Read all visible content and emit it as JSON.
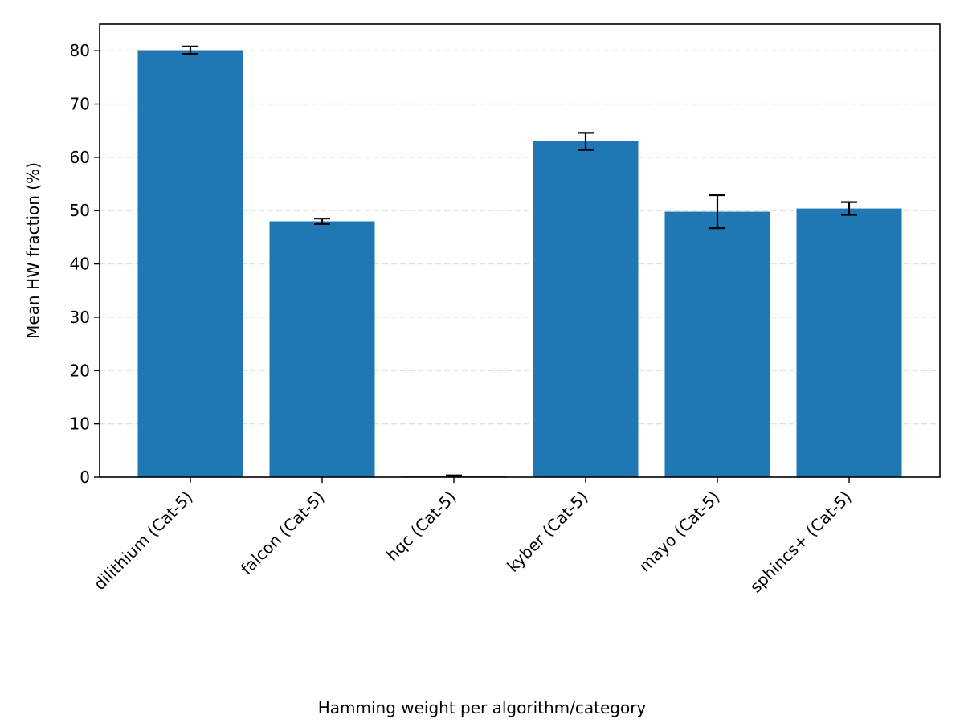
{
  "chart_data": {
    "type": "bar",
    "title": "",
    "xlabel": "Hamming weight per algorithm/category",
    "ylabel": "Mean HW fraction (%)",
    "categories": [
      "dilithium (Cat-5)",
      "falcon (Cat-5)",
      "hqc (Cat-5)",
      "kyber (Cat-5)",
      "mayo (Cat-5)",
      "sphincs+ (Cat-5)"
    ],
    "values": [
      80.1,
      48.0,
      0.3,
      63.0,
      49.8,
      50.4
    ],
    "errors": [
      0.7,
      0.5,
      0.05,
      1.6,
      3.1,
      1.2
    ],
    "ylim": [
      0,
      85
    ],
    "yticks": [
      0,
      10,
      20,
      30,
      40,
      50,
      60,
      70,
      80
    ],
    "grid": "y-dashed",
    "bar_color": "#1f77b4",
    "error_color": "#000000",
    "grid_color": "#e0e0e0"
  }
}
